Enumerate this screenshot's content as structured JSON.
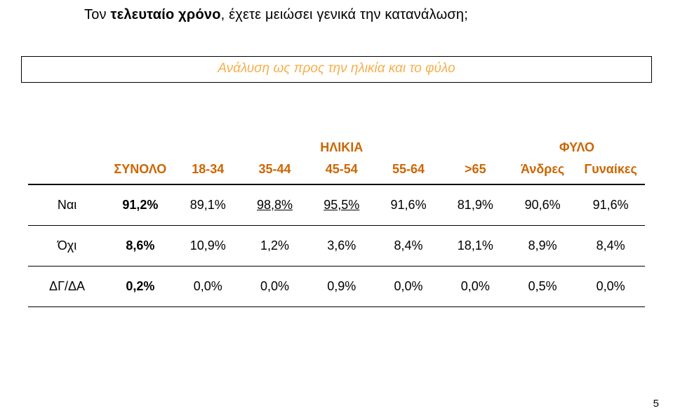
{
  "title_prefix": "Τον ",
  "title_bold": "τελευταίο χρόνο",
  "title_rest": ", έχετε μειώσει γενικά την κατανάλωση;",
  "subtitle": "Ανάλυση ως προς την ηλικία και το φύλο",
  "group_labels": {
    "age": "ΗΛΙΚΙΑ",
    "sex": "ΦΥΛΟ"
  },
  "columns": {
    "total": "ΣΥΝΟΛΟ",
    "c1": "18-34",
    "c2": "35-44",
    "c3": "45-54",
    "c4": "55-64",
    "c5": ">65",
    "c6": "Άνδρες",
    "c7": "Γυναίκες"
  },
  "rows": [
    {
      "label": "Ναι",
      "vals": [
        "91,2%",
        "89,1%",
        "98,8%",
        "95,5%",
        "91,6%",
        "81,9%",
        "90,6%",
        "91,6%"
      ],
      "bold_total": true,
      "underline": [
        2,
        3
      ]
    },
    {
      "label": "Όχι",
      "vals": [
        "8,6%",
        "10,9%",
        "1,2%",
        "3,6%",
        "8,4%",
        "18,1%",
        "8,9%",
        "8,4%"
      ],
      "bold_total": true,
      "underline": []
    },
    {
      "label": "ΔΓ/ΔΑ",
      "vals": [
        "0,2%",
        "0,0%",
        "0,0%",
        "0,9%",
        "0,0%",
        "0,0%",
        "0,5%",
        "0,0%"
      ],
      "bold_total": true,
      "underline": []
    }
  ],
  "page_number": "5",
  "colors": {
    "accent_orange": "#cc6600",
    "subtitle_orange": "#f6af4b",
    "text": "#000000",
    "background": "#ffffff",
    "rule": "#000000"
  }
}
